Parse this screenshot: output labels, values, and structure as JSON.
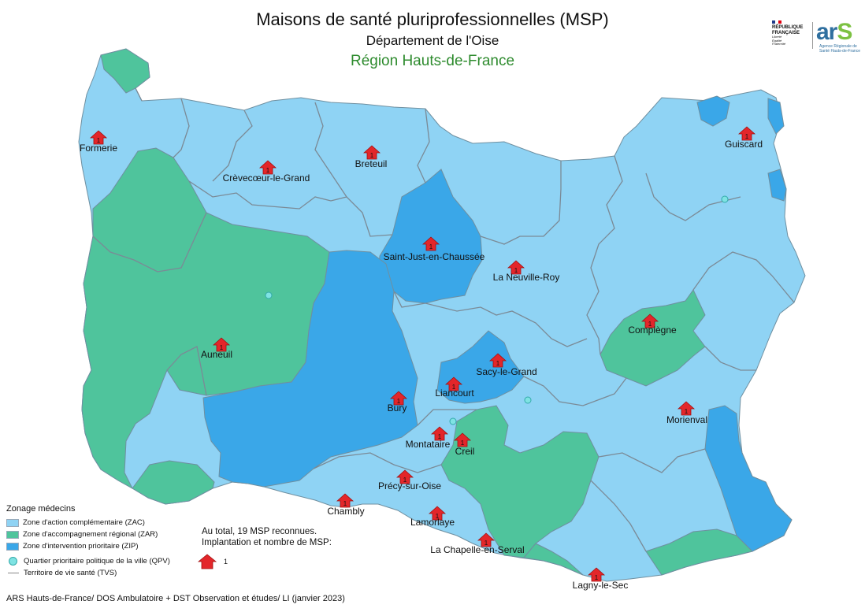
{
  "title": "Maisons de santé pluriprofessionnelles (MSP)",
  "subtitle": "Département de l'Oise",
  "region": "Région Hauts-de-France",
  "logos": {
    "rf_text": [
      "RÉPUBLIQUE",
      "FRANÇAISE",
      "Liberté",
      "Égalité",
      "Fraternité"
    ],
    "ars_text": "ar",
    "ars_s": "S",
    "ars_sub": "Agence Régionale de Santé Hauts-de-France"
  },
  "legend": {
    "title": "Zonage médecins",
    "zac": "Zone d'action complémentaire (ZAC)",
    "zar": "Zone d'accompagnement régional (ZAR)",
    "zip": "Zone d'intervention prioritaire (ZIP)",
    "qpv": "Quartier prioritaire politique de la ville (QPV)",
    "tvs": "Territoire de vie santé (TVS)"
  },
  "summary": {
    "line1": "Au total, 19 MSP reconnues.",
    "line2": "Implantation et nombre de MSP:"
  },
  "msp_legend_count": "1",
  "footer": "ARS Hauts-de-France/ DOS Ambulatoire + DST Observation et études/ LI (janvier 2023)",
  "colors": {
    "zac": "#8fd3f4",
    "zar": "#4fc49c",
    "zip": "#3aa7e8",
    "msp_marker": "#e3262a",
    "qpv": "#7fe3e3",
    "region": "#2e8b2e"
  },
  "msp": [
    {
      "name": "Formerie",
      "count": "1"
    },
    {
      "name": "Crèvecœur-le-Grand",
      "count": "1"
    },
    {
      "name": "Breteuil",
      "count": "1"
    },
    {
      "name": "Guiscard",
      "count": "1"
    },
    {
      "name": "Saint-Just-en-Chaussée",
      "count": "1"
    },
    {
      "name": "La Neuville-Roy",
      "count": "1"
    },
    {
      "name": "Auneuil",
      "count": "1"
    },
    {
      "name": "Compiègne",
      "count": "1"
    },
    {
      "name": "Sacy-le-Grand",
      "count": "1"
    },
    {
      "name": "Liancourt",
      "count": "1"
    },
    {
      "name": "Bury",
      "count": "1"
    },
    {
      "name": "Montataire",
      "count": "1"
    },
    {
      "name": "Creil",
      "count": "1"
    },
    {
      "name": "Morienval",
      "count": "1"
    },
    {
      "name": "Précy-sur-Oise",
      "count": "1"
    },
    {
      "name": "Chambly",
      "count": "1"
    },
    {
      "name": "Lamorlaye",
      "count": "1"
    },
    {
      "name": "La Chapelle-en-Serval",
      "count": "1"
    },
    {
      "name": "Lagny-le-Sec",
      "count": "1"
    }
  ]
}
